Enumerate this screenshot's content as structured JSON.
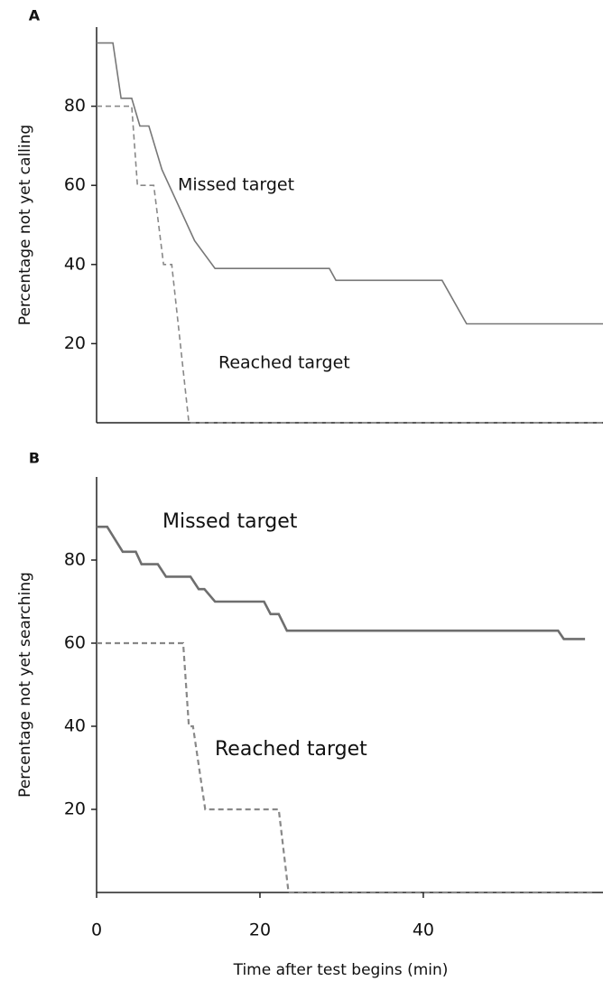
{
  "chart_data": [
    {
      "type": "line",
      "panel_label": "A",
      "ylabel": "Percentage not yet calling",
      "xlim": [
        0,
        62
      ],
      "ylim": [
        0,
        100
      ],
      "yticks": [
        20,
        40,
        60,
        80
      ],
      "series": [
        {
          "name": "Missed target",
          "color": "#777777",
          "dash": false,
          "x": [
            0,
            2,
            3,
            4.3,
            5.3,
            6.4,
            8,
            10,
            12,
            14.5,
            28.5,
            29.3,
            42.3,
            45.3,
            62
          ],
          "values": [
            96,
            96,
            82,
            82,
            75,
            75,
            64,
            55,
            46,
            39,
            39,
            36,
            36,
            25,
            25
          ]
        },
        {
          "name": "Reached target",
          "color": "#888888",
          "dash": true,
          "x": [
            0,
            4.3,
            5,
            7,
            8.2,
            9.2,
            11.3,
            62
          ],
          "values": [
            80,
            80,
            60,
            60,
            40,
            40,
            0,
            0
          ]
        }
      ]
    },
    {
      "type": "line",
      "panel_label": "B",
      "ylabel": "Percentage not yet searching",
      "xlabel": "Time after test begins (min)",
      "xlim": [
        0,
        62
      ],
      "ylim": [
        0,
        100
      ],
      "xticks": [
        0,
        20,
        40
      ],
      "yticks": [
        20,
        40,
        60,
        80
      ],
      "series": [
        {
          "name": "Missed target",
          "color": "#6e6e6e",
          "dash": false,
          "x": [
            0,
            1.3,
            3.2,
            4.8,
            5.5,
            7.5,
            8.5,
            11.5,
            12.5,
            13.2,
            14.5,
            20.5,
            21.3,
            22.3,
            23.3,
            56.5,
            57.2,
            59.8
          ],
          "values": [
            88,
            88,
            82,
            82,
            79,
            79,
            76,
            76,
            73,
            73,
            70,
            70,
            67,
            67,
            63,
            63,
            61,
            61
          ]
        },
        {
          "name": "Reached target",
          "color": "#888888",
          "dash": true,
          "x": [
            0,
            10.6,
            11.3,
            11.8,
            13.3,
            22.3,
            23.5,
            61
          ],
          "values": [
            60,
            60,
            40,
            40,
            20,
            20,
            0,
            0
          ]
        }
      ]
    }
  ]
}
